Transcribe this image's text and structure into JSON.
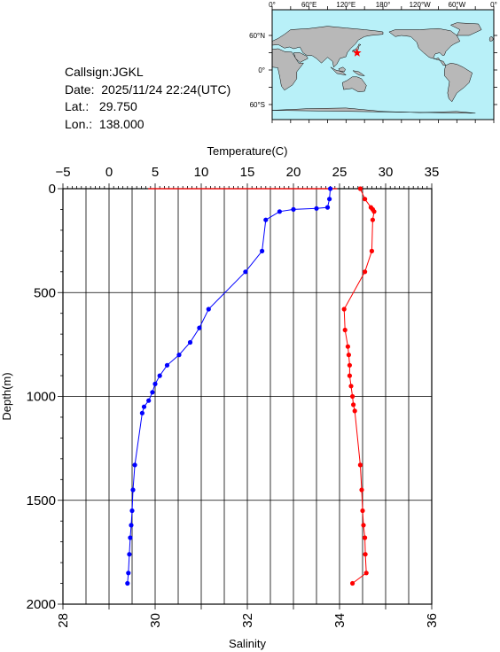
{
  "info": {
    "callsign": "Callsign:JGKL",
    "date": "Date:  2025/11/24 22:24(UTC)",
    "lat": "Lat.:   29.750",
    "lon": "Lon.:  138.000"
  },
  "map": {
    "top_ticks": [
      "0°",
      "60°E",
      "120°E",
      "180°",
      "120°W",
      "60°W",
      "0°"
    ],
    "left_ticks": [
      "60°N",
      "0°",
      "60°S"
    ],
    "marker_lat": 29.75,
    "marker_lon": 138.0,
    "marker_color": "#ff0000",
    "ocean_color": "#b8f0f8",
    "land_color": "#b8b8b8"
  },
  "chart_data": {
    "type": "line",
    "ylabel": "Depth(m)",
    "y_range": [
      0,
      2000
    ],
    "y_ticks": [
      0,
      500,
      1000,
      1500,
      2000
    ],
    "temperature_axis": {
      "label": "Temperature(C)",
      "range": [
        -5,
        35
      ],
      "ticks": [
        -5,
        0,
        5,
        10,
        15,
        20,
        25,
        30,
        35
      ],
      "color": "#0000ff"
    },
    "salinity_axis": {
      "label": "Salinity",
      "range": [
        28,
        36
      ],
      "ticks": [
        28,
        30,
        32,
        34,
        36
      ],
      "color": "#ff0000"
    },
    "grid": true,
    "series": [
      {
        "quantity": "temperature",
        "color": "#0000ff",
        "points": [
          [
            24.0,
            0
          ],
          [
            23.9,
            50
          ],
          [
            23.7,
            90
          ],
          [
            22.5,
            95
          ],
          [
            20.0,
            100
          ],
          [
            18.5,
            110
          ],
          [
            17.0,
            150
          ],
          [
            16.6,
            300
          ],
          [
            14.8,
            400
          ],
          [
            10.8,
            580
          ],
          [
            9.8,
            670
          ],
          [
            8.8,
            740
          ],
          [
            7.6,
            800
          ],
          [
            6.3,
            850
          ],
          [
            5.5,
            900
          ],
          [
            5.0,
            940
          ],
          [
            4.7,
            980
          ],
          [
            4.3,
            1020
          ],
          [
            3.8,
            1050
          ],
          [
            3.6,
            1080
          ],
          [
            2.8,
            1330
          ],
          [
            2.6,
            1450
          ],
          [
            2.5,
            1550
          ],
          [
            2.4,
            1620
          ],
          [
            2.3,
            1680
          ],
          [
            2.2,
            1760
          ],
          [
            2.1,
            1850
          ],
          [
            2.0,
            1900
          ]
        ]
      },
      {
        "quantity": "salinity",
        "color": "#ff0000",
        "points": [
          [
            34.45,
            0
          ],
          [
            34.55,
            50
          ],
          [
            34.68,
            90
          ],
          [
            34.72,
            100
          ],
          [
            34.75,
            110
          ],
          [
            34.72,
            150
          ],
          [
            34.7,
            300
          ],
          [
            34.55,
            400
          ],
          [
            34.1,
            580
          ],
          [
            34.12,
            680
          ],
          [
            34.18,
            760
          ],
          [
            34.2,
            800
          ],
          [
            34.22,
            850
          ],
          [
            34.22,
            900
          ],
          [
            34.25,
            950
          ],
          [
            34.28,
            1000
          ],
          [
            34.3,
            1040
          ],
          [
            34.33,
            1070
          ],
          [
            34.45,
            1330
          ],
          [
            34.48,
            1450
          ],
          [
            34.5,
            1550
          ],
          [
            34.52,
            1620
          ],
          [
            34.55,
            1680
          ],
          [
            34.56,
            1760
          ],
          [
            34.58,
            1850
          ],
          [
            34.28,
            1900
          ]
        ]
      }
    ],
    "surface_segment": {
      "salinity_from": 29.85,
      "salinity_to": 33.95,
      "depth": 0
    }
  }
}
